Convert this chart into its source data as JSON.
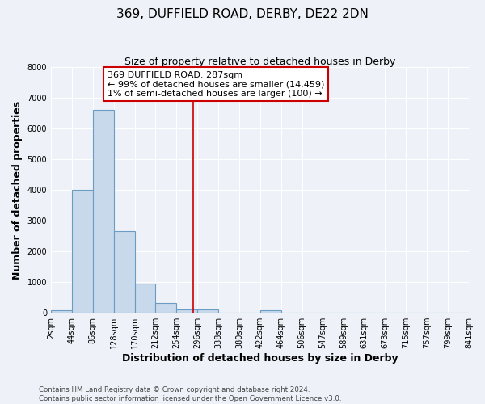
{
  "title": "369, DUFFIELD ROAD, DERBY, DE22 2DN",
  "subtitle": "Size of property relative to detached houses in Derby",
  "xlabel": "Distribution of detached houses by size in Derby",
  "ylabel": "Number of detached properties",
  "bin_edges": [
    2,
    44,
    86,
    128,
    170,
    212,
    254,
    296,
    338,
    380,
    422,
    464,
    506,
    547,
    589,
    631,
    673,
    715,
    757,
    799,
    841
  ],
  "bin_heights": [
    70,
    4000,
    6600,
    2650,
    960,
    320,
    120,
    100,
    0,
    0,
    80,
    0,
    0,
    0,
    0,
    0,
    0,
    0,
    0,
    0
  ],
  "bar_facecolor": "#c9d9ec",
  "bar_edgecolor": "#6a9cc4",
  "bar_linewidth": 0.8,
  "vline_x": 287,
  "vline_color": "#cc0000",
  "vline_linewidth": 1.2,
  "annotation_text": "369 DUFFIELD ROAD: 287sqm\n← 99% of detached houses are smaller (14,459)\n1% of semi-detached houses are larger (100) →",
  "annotation_box_edgecolor": "#cc0000",
  "annotation_box_facecolor": "#ffffff",
  "ylim": [
    0,
    8000
  ],
  "yticks": [
    0,
    1000,
    2000,
    3000,
    4000,
    5000,
    6000,
    7000,
    8000
  ],
  "background_color": "#eef2f8",
  "grid_color": "#ffffff",
  "footer_line1": "Contains HM Land Registry data © Crown copyright and database right 2024.",
  "footer_line2": "Contains public sector information licensed under the Open Government Licence v3.0.",
  "title_fontsize": 11,
  "subtitle_fontsize": 9,
  "tick_label_fontsize": 7,
  "axis_label_fontsize": 9,
  "annotation_fontsize": 8
}
